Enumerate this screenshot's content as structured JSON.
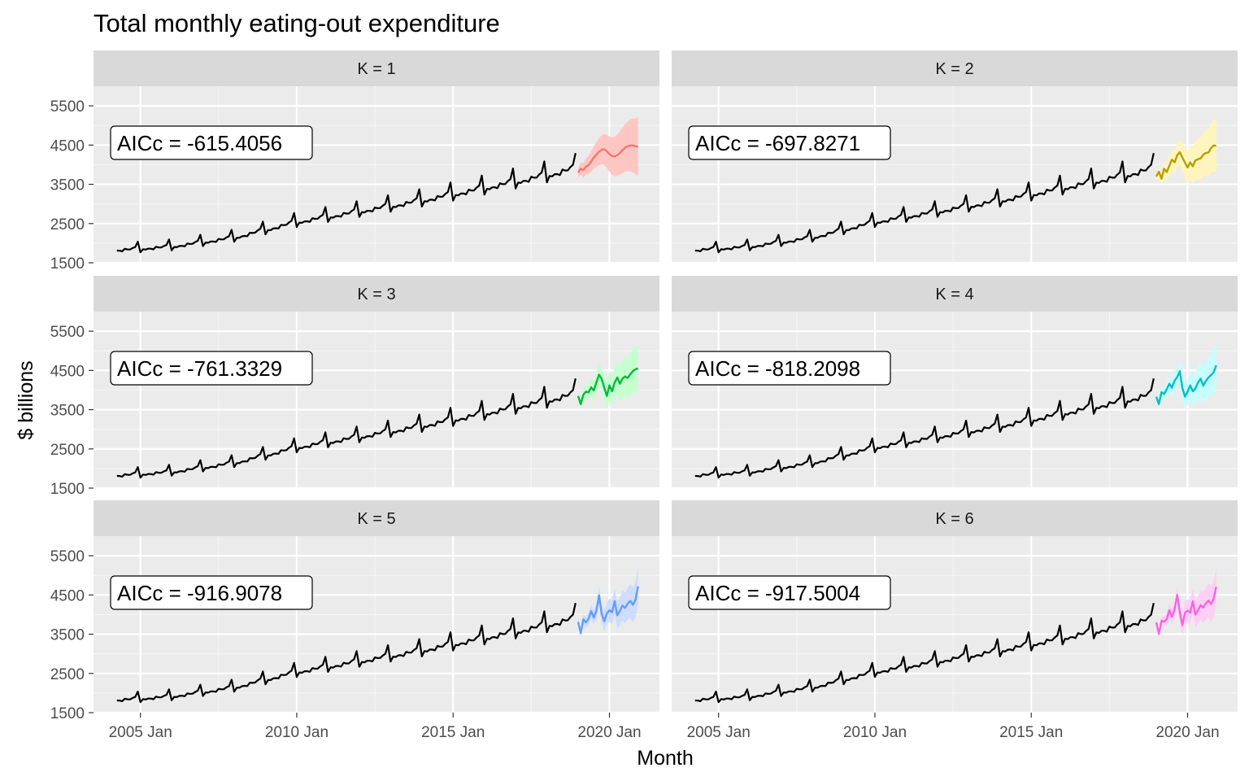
{
  "chart_data": {
    "type": "line",
    "title": "Total monthly eating-out expenditure",
    "xlabel": "Month",
    "ylabel": "$ billions",
    "x_ticks": [
      "2005 Jan",
      "2010 Jan",
      "2015 Jan",
      "2020 Jan"
    ],
    "y_ticks": [
      1500,
      2500,
      3500,
      4500,
      5500
    ],
    "ylim": [
      1500,
      6000
    ],
    "history_range": [
      "2004 Apr",
      "2018 Dec"
    ],
    "forecast_range": [
      "2019 Jan",
      "2020 Dec"
    ],
    "history_base": [
      [
        2004.25,
        1830
      ],
      [
        2006.0,
        1920
      ],
      [
        2008.0,
        2150
      ],
      [
        2010.0,
        2550
      ],
      [
        2012.0,
        2820
      ],
      [
        2014.0,
        3100
      ],
      [
        2016.0,
        3420
      ],
      [
        2018.0,
        3750
      ],
      [
        2018.917,
        3930
      ]
    ],
    "facets": [
      {
        "label": "K = 1",
        "aicc": "AICc = -615.4056",
        "color": "#F8766D",
        "fill": "#FFC4C0",
        "forecast_mean": [
          3800,
          3900,
          3860,
          3950,
          3990,
          4080,
          4180,
          4260,
          4330,
          4380,
          4390,
          4340,
          4270,
          4220,
          4210,
          4240,
          4300,
          4370,
          4430,
          4470,
          4490,
          4490,
          4470,
          4460
        ],
        "interval_halfwidth_start": 130,
        "interval_halfwidth_end": 740
      },
      {
        "label": "K = 2",
        "aicc": "AICc = -697.8271",
        "color": "#B79F00",
        "fill": "#FFF5BC",
        "forecast_mean": [
          3700,
          3820,
          3640,
          3900,
          3810,
          3970,
          4130,
          4060,
          4240,
          4320,
          4180,
          4050,
          3930,
          4060,
          3960,
          4110,
          4140,
          4160,
          4250,
          4300,
          4310,
          4420,
          4490,
          4480
        ],
        "interval_halfwidth_start": 120,
        "interval_halfwidth_end": 680
      },
      {
        "label": "K = 3",
        "aicc": "AICc = -761.3329",
        "color": "#00BA38",
        "fill": "#C4FFCF",
        "forecast_mean": [
          3850,
          3640,
          3880,
          3960,
          3940,
          4070,
          3990,
          4200,
          4390,
          4290,
          4060,
          3850,
          4120,
          3970,
          4190,
          4320,
          4160,
          4290,
          4350,
          4310,
          4400,
          4480,
          4530,
          4550
        ],
        "interval_halfwidth_start": 110,
        "interval_halfwidth_end": 600
      },
      {
        "label": "K = 4",
        "aicc": "AICc = -818.2098",
        "color": "#00BFC4",
        "fill": "#C4FFFF",
        "forecast_mean": [
          3830,
          3640,
          3950,
          3900,
          4020,
          4160,
          4060,
          4240,
          4330,
          4480,
          4050,
          3830,
          3960,
          4120,
          3970,
          4040,
          4190,
          4290,
          4110,
          4230,
          4320,
          4380,
          4450,
          4630
        ],
        "interval_halfwidth_start": 100,
        "interval_halfwidth_end": 560
      },
      {
        "label": "K = 5",
        "aicc": "AICc = -916.9078",
        "color": "#619CFF",
        "fill": "#CCDCFF",
        "forecast_mean": [
          3810,
          3530,
          3880,
          3800,
          3890,
          4090,
          3920,
          4100,
          4490,
          4020,
          3830,
          4030,
          4110,
          4060,
          4340,
          3980,
          4090,
          4230,
          4170,
          4280,
          4350,
          4250,
          4380,
          4720
        ],
        "interval_halfwidth_start": 90,
        "interval_halfwidth_end": 480
      },
      {
        "label": "K = 6",
        "aicc": "AICc = -917.5004",
        "color": "#F564E3",
        "fill": "#FFCCF6",
        "forecast_mean": [
          3800,
          3510,
          3840,
          3820,
          3880,
          4110,
          3940,
          4130,
          4500,
          4060,
          3730,
          4050,
          4100,
          4050,
          4340,
          4000,
          4110,
          4240,
          4180,
          4280,
          4360,
          4270,
          4390,
          4710
        ],
        "interval_halfwidth_start": 90,
        "interval_halfwidth_end": 480
      }
    ]
  }
}
